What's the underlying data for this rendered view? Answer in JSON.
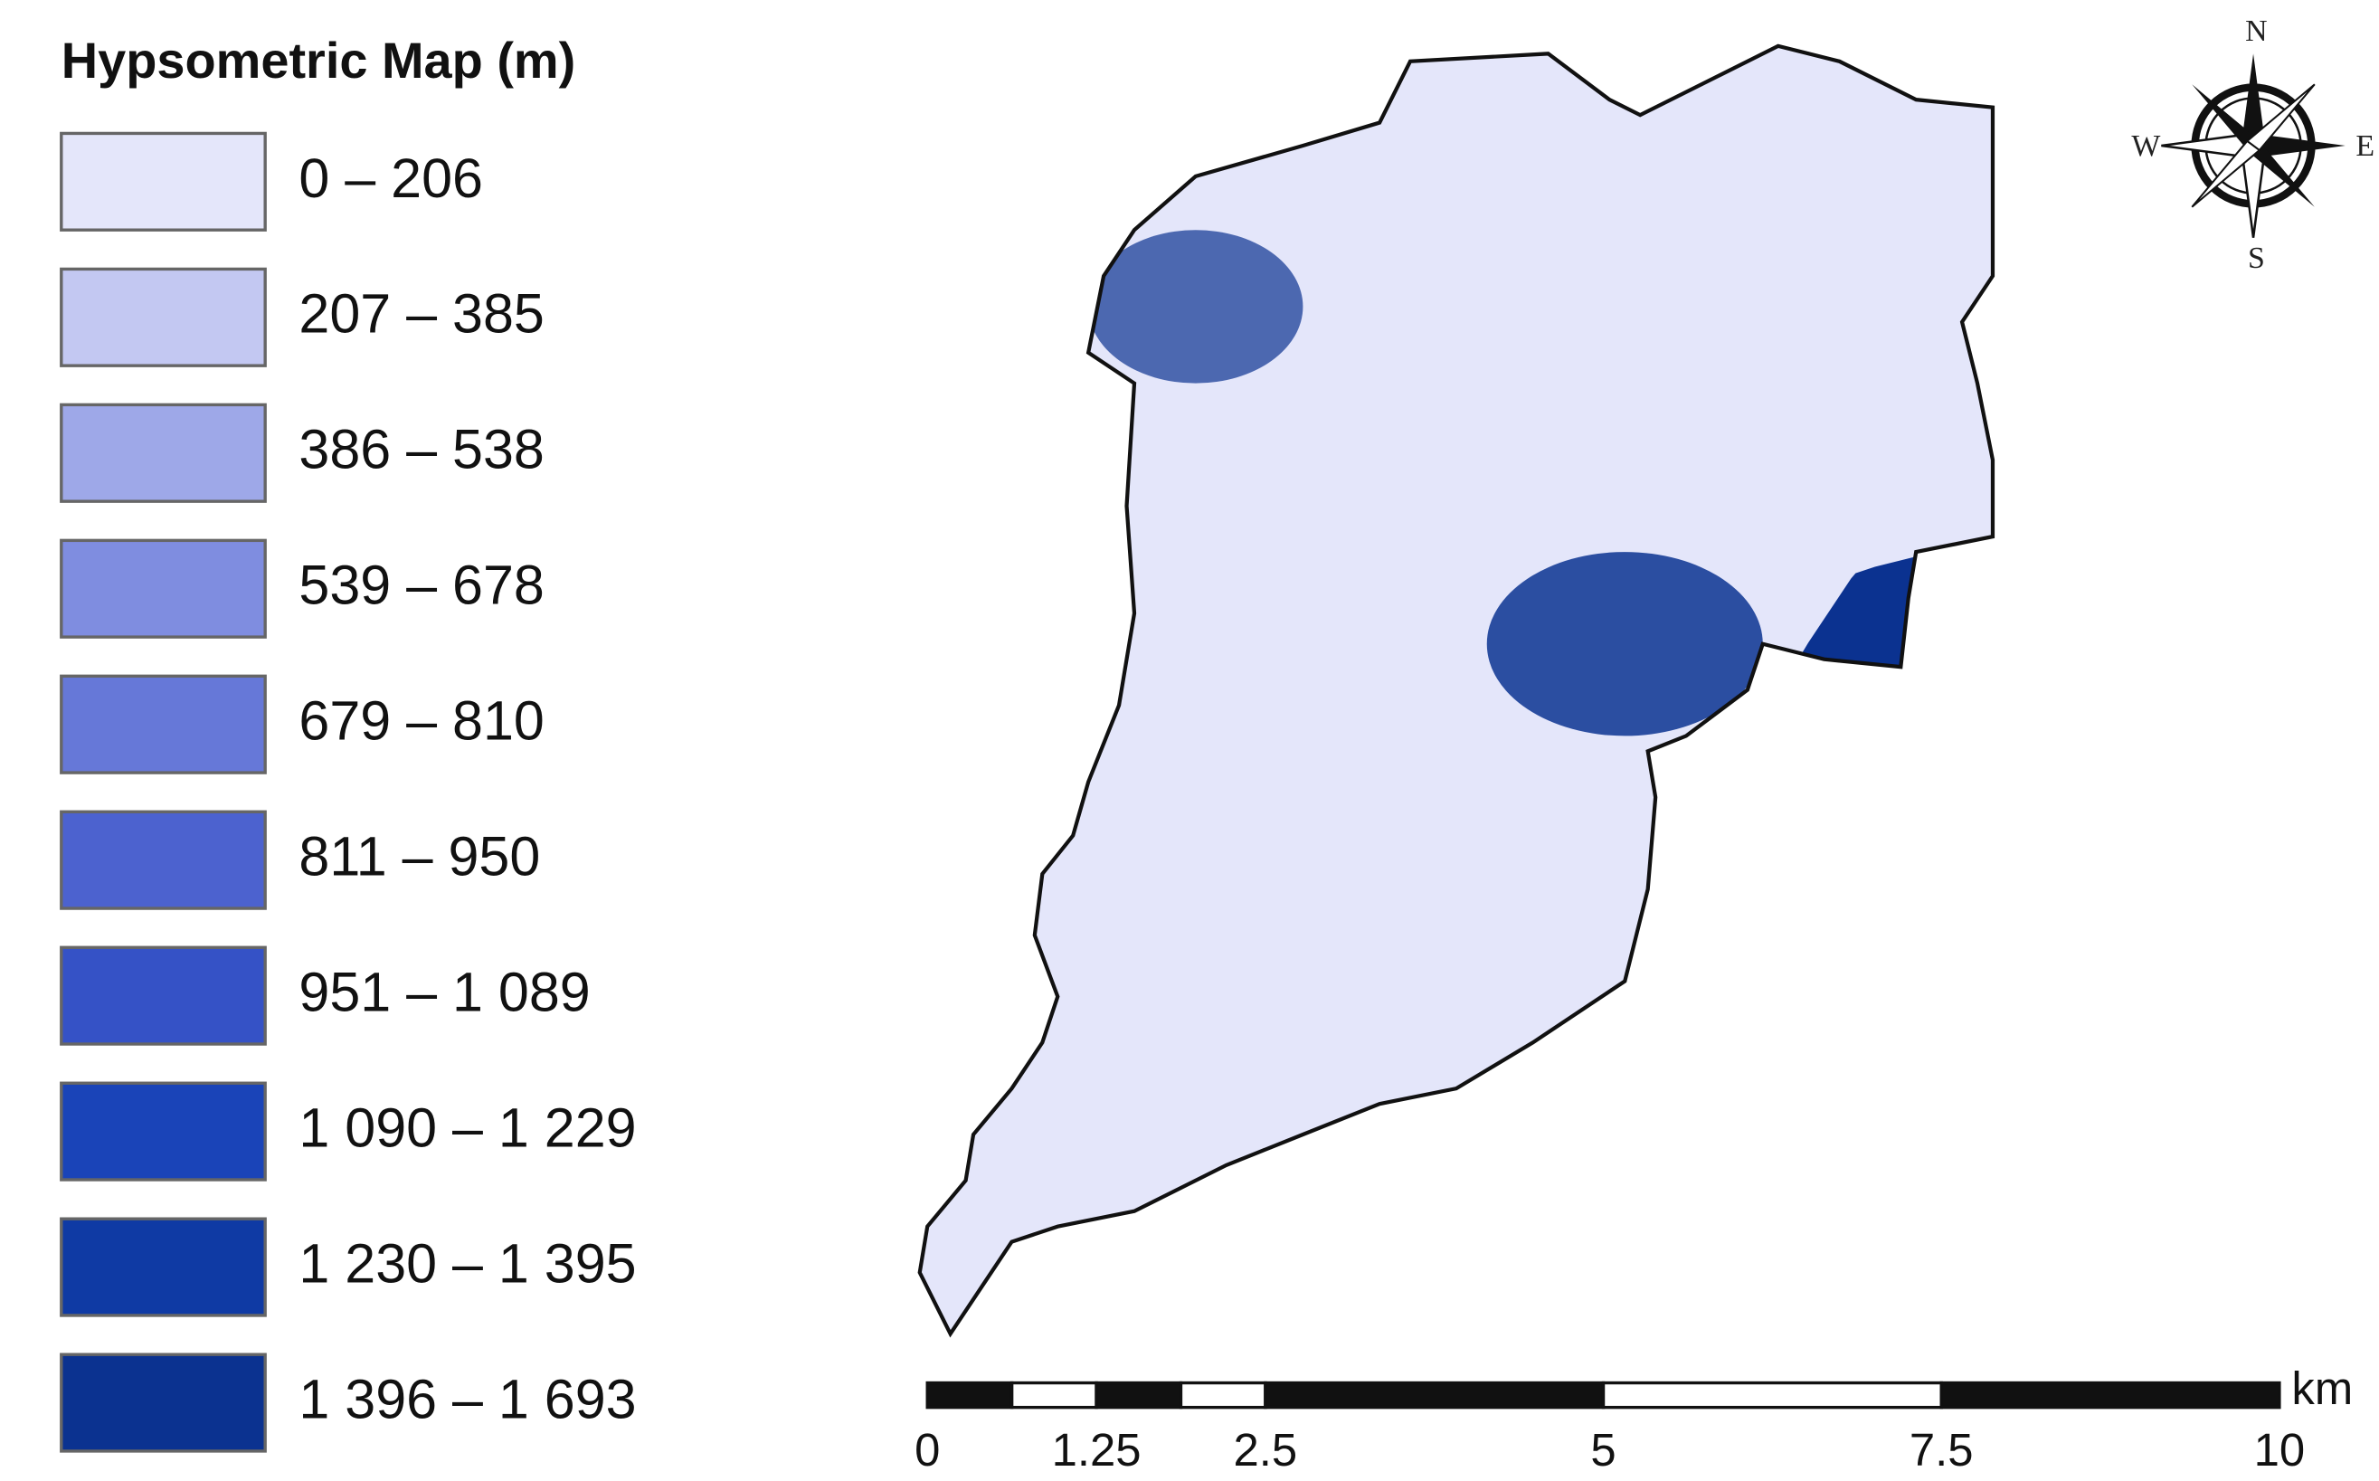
{
  "legend": {
    "title": "Hypsometric Map (m)",
    "classes": [
      {
        "label": "0 – 206",
        "color": "#e4e6fa"
      },
      {
        "label": "207 – 385",
        "color": "#c3c8f2"
      },
      {
        "label": "386 – 538",
        "color": "#9ea8e8"
      },
      {
        "label": "539 – 678",
        "color": "#7f8de0"
      },
      {
        "label": "679 – 810",
        "color": "#6678d8"
      },
      {
        "label": "811 – 950",
        "color": "#4c62cf"
      },
      {
        "label": "951 – 1 089",
        "color": "#3552c6"
      },
      {
        "label": "1 090 – 1 229",
        "color": "#1a44b8"
      },
      {
        "label": "1 230 – 1 395",
        "color": "#0f3aa4"
      },
      {
        "label": "1 396 – 1 693",
        "color": "#0b3290"
      }
    ]
  },
  "compass": {
    "north": "N",
    "south": "S",
    "east": "E",
    "west": "W"
  },
  "scale_bar": {
    "unit": "km",
    "ticks": [
      0,
      1.25,
      2.5,
      5,
      7.5,
      10
    ]
  }
}
